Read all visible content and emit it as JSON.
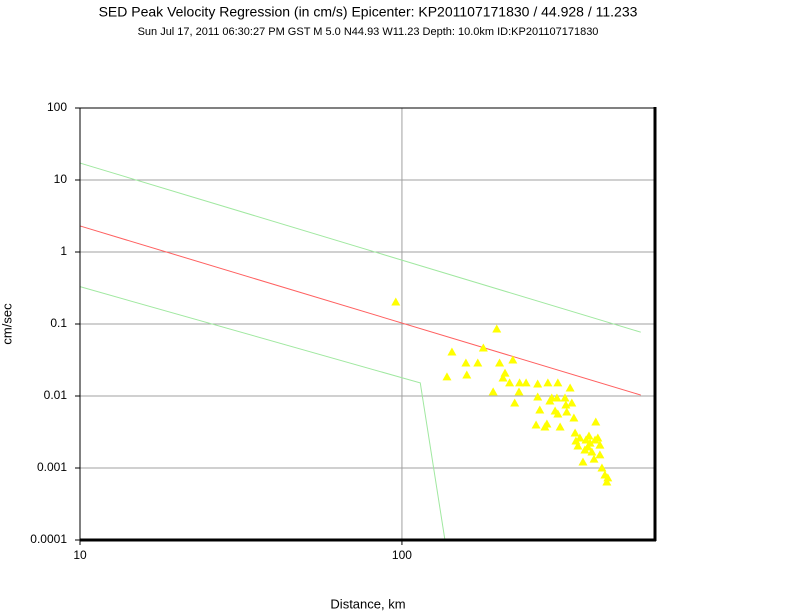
{
  "chart_data": {
    "type": "scatter",
    "title": "SED Peak Velocity Regression (in cm/s) Epicenter: KP201107171830 / 44.928 / 11.233",
    "subtitle": "Sun Jul 17, 2011 06:30:27 PM GST   M 5.0   N44.93 W11.23   Depth: 10.0km   ID:KP201107171830",
    "x_label": "Distance, km",
    "y_label": "cm/sec",
    "xscale": "log",
    "yscale": "log",
    "xlim": [
      10,
      611
    ],
    "ylim": [
      0.0001,
      100
    ],
    "xticks": [
      10,
      100
    ],
    "yticks": [
      0.0001,
      0.001,
      0.01,
      0.1,
      1,
      10,
      100
    ],
    "grid": true,
    "series": [
      {
        "type": "line",
        "color": "#ff6060",
        "x": [
          10,
          552
        ],
        "values": [
          2.3,
          0.0103
        ]
      },
      {
        "type": "line",
        "color": "#a0e8a0",
        "x": [
          10,
          552
        ],
        "values": [
          17.2,
          0.077
        ]
      },
      {
        "type": "line",
        "color": "#a0e8a0",
        "x": [
          10,
          114,
          136
        ],
        "values": [
          0.33,
          0.0152,
          0.0001
        ]
      },
      {
        "type": "scatter",
        "color": "#ffff00",
        "x": [
          95.7,
          143,
          138,
          158,
          159,
          172,
          179,
          192,
          197,
          201,
          206,
          209,
          216,
          221,
          224,
          231,
          232,
          243,
          264,
          261,
          264,
          268,
          282,
          278,
          284,
          288,
          292,
          299,
          303,
          305,
          305,
          310,
          321,
          323,
          325,
          333,
          337,
          342,
          345,
          347,
          352,
          357,
          365,
          370,
          373,
          378,
          381,
          384,
          389,
          395,
          398,
          400,
          406,
          412,
          412,
          418,
          427,
          433,
          436
        ],
        "values": [
          0.202,
          0.0408,
          0.0184,
          0.0287,
          0.0196,
          0.0287,
          0.0464,
          0.0114,
          0.0853,
          0.0287,
          0.0178,
          0.0208,
          0.0152,
          0.0316,
          0.008,
          0.0114,
          0.0152,
          0.0152,
          0.0147,
          0.00395,
          0.00969,
          0.00639,
          0.00408,
          0.00371,
          0.0152,
          0.00853,
          0.00937,
          0.00619,
          0.00937,
          0.0152,
          0.00562,
          0.00371,
          0.00937,
          0.0075,
          0.006,
          0.0129,
          0.008,
          0.00494,
          0.00306,
          0.00237,
          0.00202,
          0.00261,
          0.00121,
          0.00178,
          0.00245,
          0.00196,
          0.00278,
          0.00222,
          0.00167,
          0.00133,
          0.00245,
          0.00436,
          0.00261,
          0.00208,
          0.00152,
          0.001,
          0.0008,
          0.00064,
          0.00073
        ]
      }
    ]
  }
}
